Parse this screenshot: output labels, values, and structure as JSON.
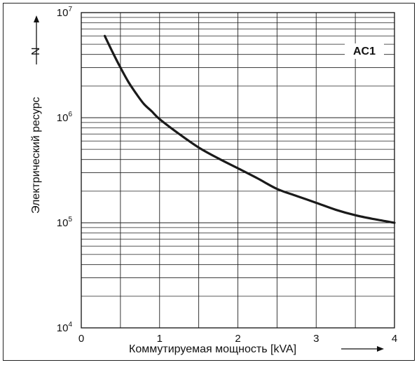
{
  "chart_data": {
    "type": "line",
    "xlabel": "Коммутируемая мощность [kVA]",
    "ylabel": "Электрический ресурс",
    "ylabel_symbol": "N",
    "xlim": [
      0,
      4
    ],
    "ylim": [
      10000,
      10000000
    ],
    "yscale": "log",
    "grid": true,
    "x_ticks": [
      "0",
      "1",
      "2",
      "3",
      "4"
    ],
    "y_tick_base": "10",
    "y_tick_exponents": [
      "4",
      "5",
      "6",
      "7"
    ],
    "annotation": "AC1",
    "series": [
      {
        "x": [
          0.3,
          0.4,
          0.5,
          0.6,
          0.7,
          0.8,
          0.9,
          1.0,
          1.25,
          1.5,
          1.75,
          2.0,
          2.25,
          2.5,
          2.75,
          3.0,
          3.25,
          3.5,
          3.75,
          4.0
        ],
        "values": [
          6000000,
          4200000,
          3000000,
          2200000,
          1700000,
          1350000,
          1150000,
          970000,
          700000,
          520000,
          410000,
          330000,
          265000,
          210000,
          180000,
          155000,
          133000,
          118000,
          108000,
          100000
        ]
      }
    ],
    "colors": {
      "line": "#1a1a1a",
      "grid": "#222222"
    }
  }
}
